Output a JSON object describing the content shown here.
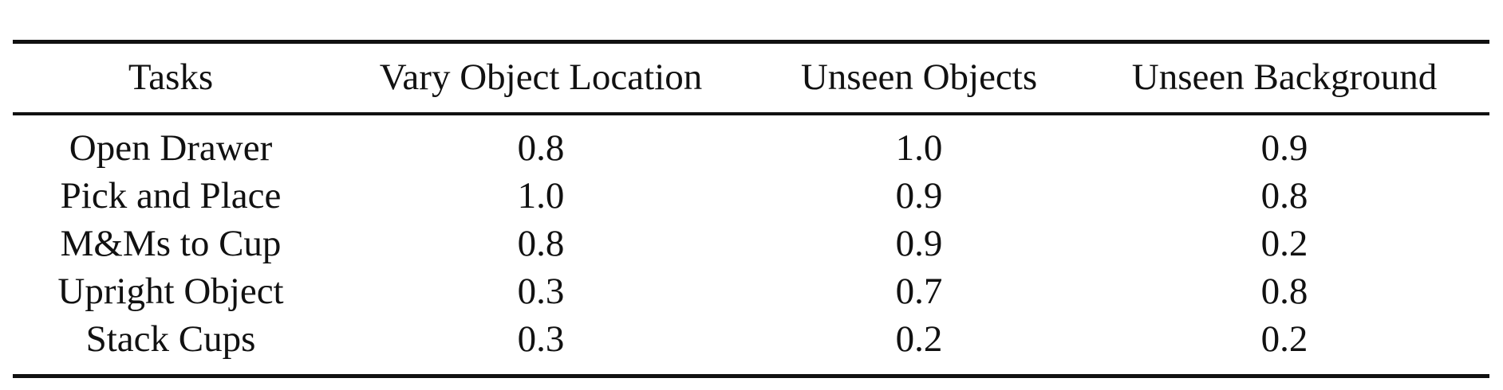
{
  "table": {
    "headers": [
      "Tasks",
      "Vary Object Location",
      "Unseen Objects",
      "Unseen Background"
    ],
    "rows": [
      [
        "Open Drawer",
        "0.8",
        "1.0",
        "0.9"
      ],
      [
        "Pick and Place",
        "1.0",
        "0.9",
        "0.8"
      ],
      [
        "M&Ms to Cup",
        "0.8",
        "0.9",
        "0.2"
      ],
      [
        "Upright Object",
        "0.3",
        "0.7",
        "0.8"
      ],
      [
        "Stack Cups",
        "0.3",
        "0.2",
        "0.2"
      ]
    ]
  }
}
